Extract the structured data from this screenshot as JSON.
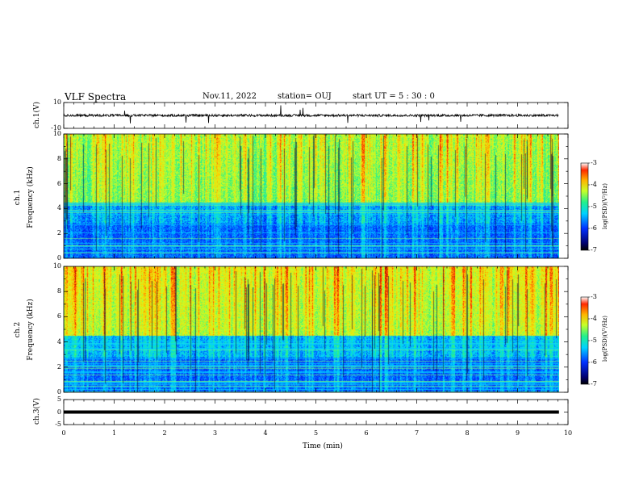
{
  "header": {
    "title": "VLF Spectra",
    "date": "Nov.11, 2022",
    "station": "station= OUJ",
    "start": "start  UT =   5  : 30 : 0"
  },
  "chart_data": [
    {
      "type": "line",
      "ylabel": "ch.1(V)",
      "ylim": [
        -10,
        10
      ],
      "xlim": [
        0,
        10
      ],
      "yticks": [
        "10",
        "-10"
      ],
      "description_values": {
        "baseline_V": 0.0,
        "noise_amplitude_V": 1.5
      }
    },
    {
      "type": "heatmap",
      "ylabel_line1": "ch.1",
      "ylabel_line2": "Frequency (kHz)",
      "ylim": [
        0,
        10
      ],
      "xlim": [
        0,
        10
      ],
      "yticks": [
        "0",
        "2",
        "4",
        "6",
        "8",
        "10"
      ],
      "colorbar": {
        "label": "log(PSD)(V²/Hz)",
        "range": [
          -7,
          -3
        ],
        "ticks": [
          "-3",
          "-4",
          "-5",
          "-6",
          "-7"
        ]
      }
    },
    {
      "type": "heatmap",
      "ylabel_line1": "ch.2",
      "ylabel_line2": "Frequency (kHz)",
      "ylim": [
        0,
        10
      ],
      "xlim": [
        0,
        10
      ],
      "yticks": [
        "0",
        "2",
        "4",
        "6",
        "8",
        "10"
      ],
      "colorbar": {
        "label": "log(PSD)(V²/Hz)",
        "range": [
          -7,
          -3
        ],
        "ticks": [
          "-3",
          "-4",
          "-5",
          "-6",
          "-7"
        ]
      }
    },
    {
      "type": "line",
      "ylabel": "ch.3(V)",
      "ylim": [
        -5,
        5
      ],
      "xlim": [
        0,
        10
      ],
      "yticks": [
        "5",
        "0",
        "-5"
      ],
      "description_values": {
        "constant_V": 0.0
      }
    }
  ],
  "xaxis": {
    "label": "Time  (min)",
    "ticks": [
      "0",
      "1",
      "2",
      "3",
      "4",
      "5",
      "6",
      "7",
      "8",
      "9",
      "10"
    ]
  },
  "colors": {
    "axis": "#000000",
    "colormap": [
      "#00006e",
      "#0020ff",
      "#00d2ff",
      "#22f08c",
      "#c8ff28",
      "#ffd200",
      "#ff3200",
      "#820000"
    ]
  }
}
